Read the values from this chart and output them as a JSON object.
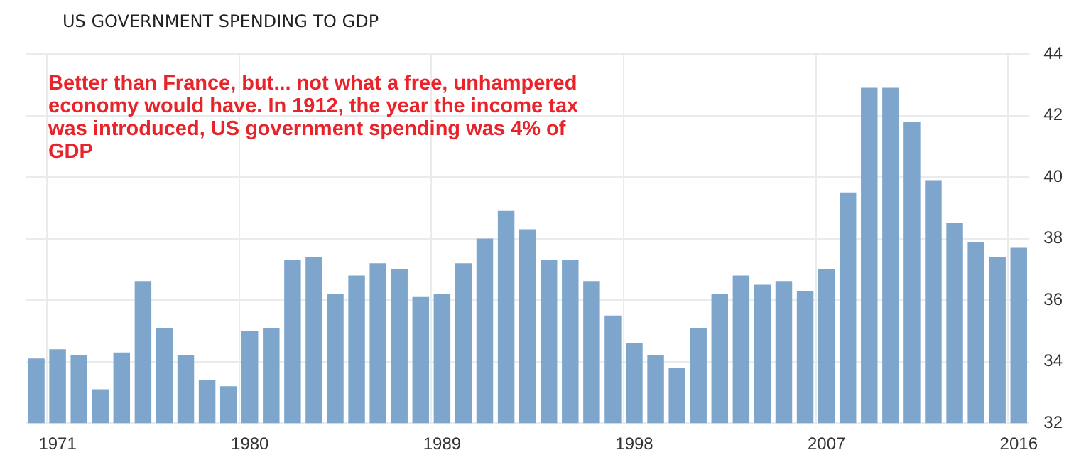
{
  "chart_data": {
    "type": "bar",
    "title": "US GOVERNMENT SPENDING TO GDP",
    "annotations": [
      "Better than France, but... not what a free, unhampered economy would have. In 1912, the year the income tax was introduced, US government spending was 4% of GDP"
    ],
    "categories": [
      null,
      "1971",
      null,
      null,
      null,
      null,
      null,
      null,
      null,
      null,
      "1980",
      null,
      null,
      null,
      null,
      null,
      null,
      null,
      null,
      "1989",
      null,
      null,
      null,
      null,
      null,
      null,
      null,
      null,
      "1998",
      null,
      null,
      null,
      null,
      null,
      null,
      null,
      null,
      "2007",
      null,
      null,
      null,
      null,
      null,
      null,
      null,
      null,
      "2016"
    ],
    "values": [
      34.1,
      34.4,
      34.2,
      33.1,
      34.3,
      36.6,
      35.1,
      34.2,
      33.4,
      33.2,
      35.0,
      35.1,
      37.3,
      37.4,
      36.2,
      36.8,
      37.2,
      37.0,
      36.1,
      36.2,
      37.2,
      38.0,
      38.9,
      38.3,
      37.3,
      37.3,
      36.6,
      35.5,
      34.6,
      34.2,
      33.8,
      35.1,
      36.2,
      36.8,
      36.5,
      36.6,
      36.3,
      37.0,
      39.5,
      42.9,
      42.9,
      41.8,
      39.9,
      38.5,
      37.9,
      37.4,
      37.7
    ],
    "color": "#7ea6cd",
    "ylim": [
      32,
      44
    ],
    "yticks": [
      32,
      34,
      36,
      38,
      40,
      42,
      44
    ],
    "grid": true
  }
}
